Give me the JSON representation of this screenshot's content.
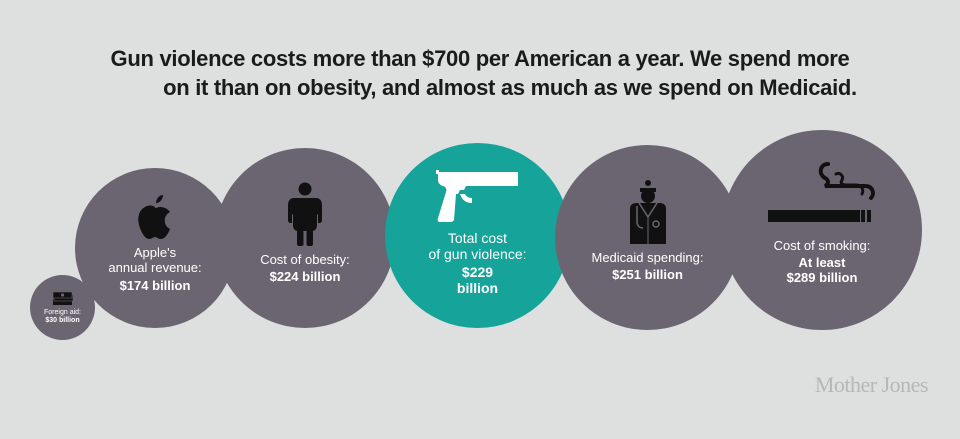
{
  "headline": {
    "line1": "Gun violence costs more than $700 per American a year. We spend more",
    "line2": "on it than on obesity, and almost as much as we spend on Medicaid."
  },
  "circles": [
    {
      "caption": "Foreign aid:",
      "value": "$30 billion",
      "icon": "money-stack-icon",
      "color": "#6b6572"
    },
    {
      "caption_1": "Apple's",
      "caption_2": "annual revenue:",
      "value": "$174 billion",
      "icon": "apple-logo-icon",
      "color": "#6b6572"
    },
    {
      "caption": "Cost of obesity:",
      "value": "$224 billion",
      "icon": "obese-person-icon",
      "color": "#6b6572"
    },
    {
      "caption_1": "Total cost",
      "caption_2": "of gun violence:",
      "value_1": "$229",
      "value_2": "billion",
      "icon": "handgun-icon",
      "color": "#16a39a"
    },
    {
      "caption": "Medicaid spending:",
      "value": "$251 billion",
      "icon": "doctor-icon",
      "color": "#6b6572"
    },
    {
      "caption": "Cost of smoking:",
      "value_1": "At least",
      "value_2": "$289 billion",
      "icon": "cigarette-icon",
      "color": "#6b6572"
    }
  ],
  "logo": "Mother Jones"
}
